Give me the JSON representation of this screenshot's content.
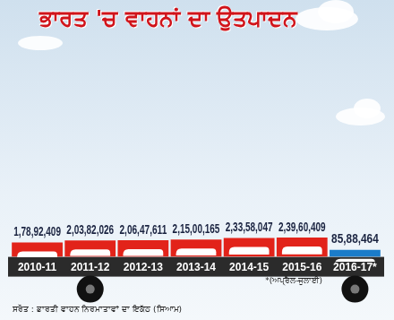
{
  "chart_data": {
    "type": "bar",
    "title": "ਭਾਰਤ 'ਚ ਵਾਹਨਾਂ ਦਾ ਉਤਪਾਦਨ",
    "categories": [
      "2010-11",
      "2011-12",
      "2012-13",
      "2013-14",
      "2014-15",
      "2015-16",
      "2016-17*"
    ],
    "values": [
      17892409,
      20382026,
      20647611,
      21500165,
      23358047,
      23960409,
      8588464
    ],
    "value_labels": [
      "1,78,92,409",
      "2,03,82,026",
      "2,06,47,611",
      "2,15,00,165",
      "2,33,58,047",
      "2,39,60,409",
      "85,88,464"
    ],
    "colors": [
      "#e2231a",
      "#e2231a",
      "#e2231a",
      "#e2231a",
      "#e2231a",
      "#e2231a",
      "#1b7cc9"
    ],
    "ylim": [
      0,
      260000000
    ],
    "grid": false,
    "data_labels": true,
    "tick_labels": "x",
    "footnote": "*(ਅਪ੍ਰੈਲ-ਜੁਲਾਈ)",
    "source": "ਸਰੋਤ : ਭਾਰਤੀ ਵਾਹਨ ਨਿਰਮਾਤਾਵਾਂ ਦਾ ਇਕੱਠ (ਸਿਆਮ)"
  }
}
